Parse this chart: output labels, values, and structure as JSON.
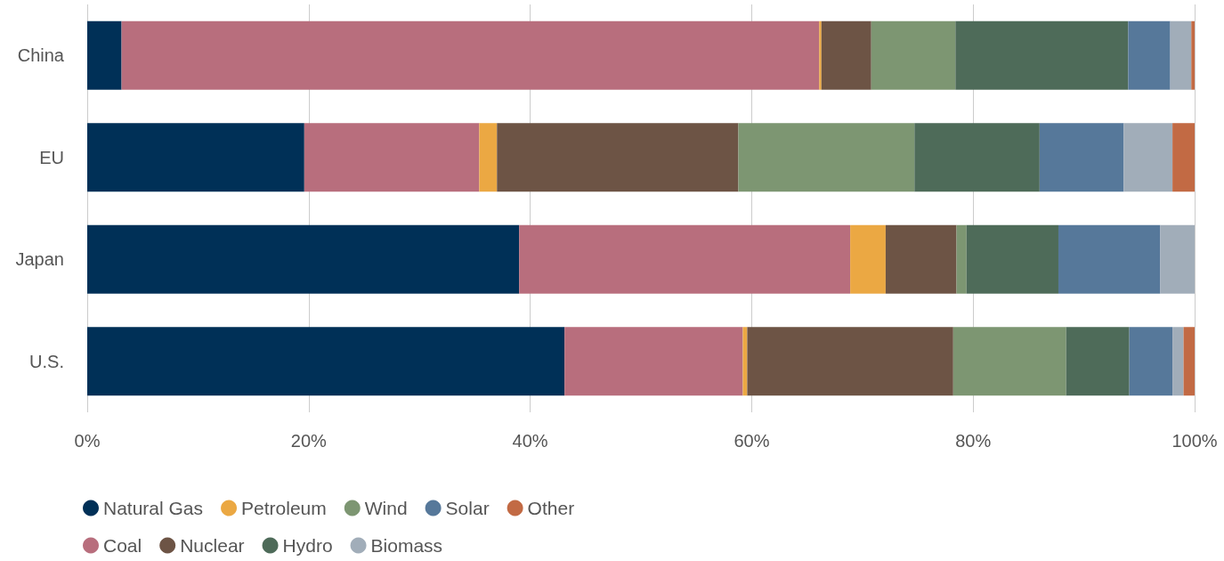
{
  "chart_data": {
    "type": "bar",
    "orientation": "horizontal",
    "stacked": true,
    "categories": [
      "China",
      "EU",
      "Japan",
      "U.S."
    ],
    "series": [
      {
        "name": "Natural Gas",
        "color": "#003057",
        "values": [
          3.1,
          19.6,
          39.0,
          43.1
        ]
      },
      {
        "name": "Coal",
        "color": "#b86e7d",
        "values": [
          63.0,
          15.8,
          29.9,
          16.1
        ]
      },
      {
        "name": "Petroleum",
        "color": "#eba843",
        "values": [
          0.2,
          1.6,
          3.2,
          0.4
        ]
      },
      {
        "name": "Nuclear",
        "color": "#6d5445",
        "values": [
          4.5,
          21.8,
          6.4,
          18.6
        ]
      },
      {
        "name": "Wind",
        "color": "#7d9672",
        "values": [
          7.6,
          15.9,
          0.9,
          10.2
        ]
      },
      {
        "name": "Hydro",
        "color": "#4e6b59",
        "values": [
          15.6,
          11.3,
          8.3,
          5.7
        ]
      },
      {
        "name": "Solar",
        "color": "#56789a",
        "values": [
          3.8,
          7.6,
          9.2,
          3.9
        ]
      },
      {
        "name": "Biomass",
        "color": "#a1adb9",
        "values": [
          1.9,
          4.4,
          3.1,
          1.0
        ]
      },
      {
        "name": "Other",
        "color": "#c26a44",
        "values": [
          0.3,
          2.0,
          0,
          1.0
        ]
      }
    ],
    "xlim": [
      0,
      100
    ],
    "xticks": [
      {
        "value": 0,
        "label": "0%"
      },
      {
        "value": 20,
        "label": "20%"
      },
      {
        "value": 40,
        "label": "40%"
      },
      {
        "value": 60,
        "label": "60%"
      },
      {
        "value": 80,
        "label": "80%"
      },
      {
        "value": 100,
        "label": "100%"
      }
    ],
    "grid": "x",
    "legend": "bottom"
  }
}
